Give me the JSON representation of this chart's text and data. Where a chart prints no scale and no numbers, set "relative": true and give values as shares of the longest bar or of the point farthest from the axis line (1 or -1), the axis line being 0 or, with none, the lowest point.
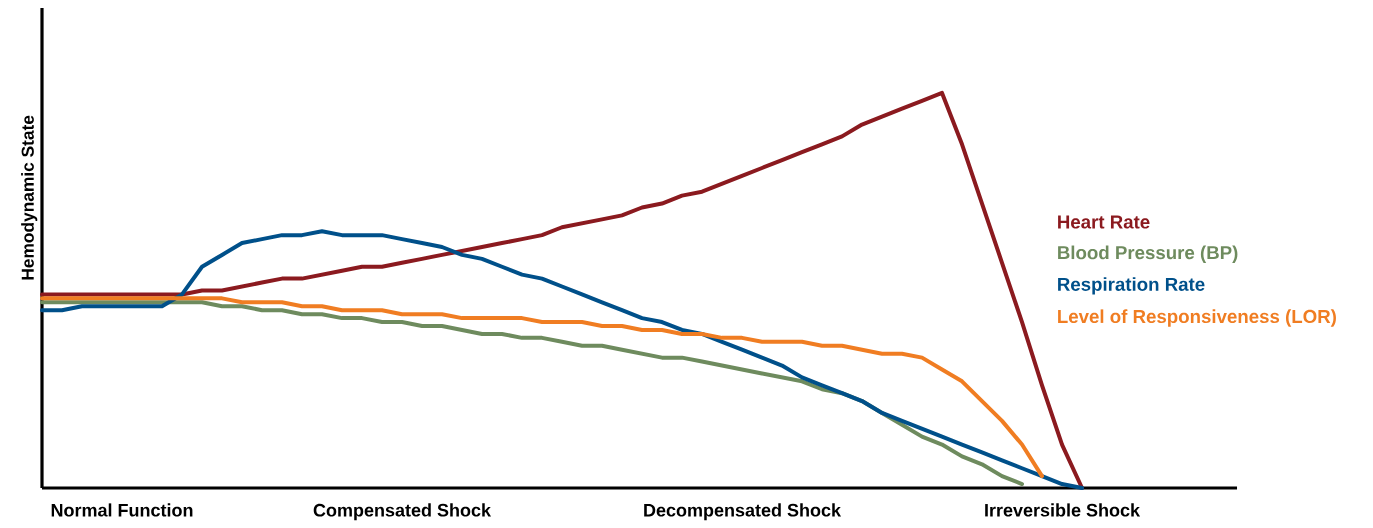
{
  "chart_data": {
    "type": "line",
    "relative": true,
    "ylabel": "Hemodynamic State",
    "legend": "right",
    "grid": false,
    "line_style": "solid",
    "categories": [
      null,
      null,
      null,
      null,
      "Normal Function",
      null,
      null,
      null,
      null,
      null,
      null,
      null,
      null,
      null,
      null,
      null,
      null,
      null,
      "Compensated Shock",
      null,
      null,
      null,
      null,
      null,
      null,
      null,
      null,
      null,
      null,
      null,
      null,
      null,
      null,
      null,
      null,
      "Decompensated Shock",
      null,
      null,
      null,
      null,
      null,
      null,
      null,
      null,
      null,
      null,
      null,
      null,
      null,
      null,
      null,
      "Irreversible Shock",
      null,
      null,
      null,
      null,
      null,
      null,
      null,
      null
    ],
    "series": [
      {
        "name": "Heart Rate",
        "color": "#8b1a1f",
        "values": [
          0.49,
          0.49,
          0.49,
          0.49,
          0.49,
          0.49,
          0.49,
          0.49,
          0.5,
          0.5,
          0.51,
          0.52,
          0.53,
          0.53,
          0.54,
          0.55,
          0.56,
          0.56,
          0.57,
          0.58,
          0.59,
          0.6,
          0.61,
          0.62,
          0.63,
          0.64,
          0.66,
          0.67,
          0.68,
          0.69,
          0.71,
          0.72,
          0.74,
          0.75,
          0.77,
          0.79,
          0.81,
          0.83,
          0.85,
          0.87,
          0.89,
          0.92,
          0.94,
          0.96,
          0.98,
          1.0,
          0.87,
          0.72,
          0.57,
          0.42,
          0.26,
          0.11,
          0,
          null,
          null,
          null,
          null,
          null,
          null,
          null
        ]
      },
      {
        "name": "Blood Pressure (BP)",
        "color": "#6e8b5e",
        "values": [
          0.47,
          0.47,
          0.47,
          0.47,
          0.47,
          0.47,
          0.47,
          0.47,
          0.47,
          0.46,
          0.46,
          0.45,
          0.45,
          0.44,
          0.44,
          0.43,
          0.43,
          0.42,
          0.42,
          0.41,
          0.41,
          0.4,
          0.39,
          0.39,
          0.38,
          0.38,
          0.37,
          0.36,
          0.36,
          0.35,
          0.34,
          0.33,
          0.33,
          0.32,
          0.31,
          0.3,
          0.29,
          0.28,
          0.27,
          0.25,
          0.24,
          0.22,
          0.19,
          0.16,
          0.13,
          0.11,
          0.08,
          0.06,
          0.03,
          0.01,
          null,
          null,
          null,
          null,
          null,
          null,
          null,
          null,
          null,
          null
        ]
      },
      {
        "name": "Respiration Rate",
        "color": "#00508a",
        "values": [
          0.45,
          0.45,
          0.46,
          0.46,
          0.46,
          0.46,
          0.46,
          0.49,
          0.56,
          0.59,
          0.62,
          0.63,
          0.64,
          0.64,
          0.65,
          0.64,
          0.64,
          0.64,
          0.63,
          0.62,
          0.61,
          0.59,
          0.58,
          0.56,
          0.54,
          0.53,
          0.51,
          0.49,
          0.47,
          0.45,
          0.43,
          0.42,
          0.4,
          0.39,
          0.37,
          0.35,
          0.33,
          0.31,
          0.28,
          0.26,
          0.24,
          0.22,
          0.19,
          0.17,
          0.15,
          0.13,
          0.11,
          0.09,
          0.07,
          0.05,
          0.03,
          0.01,
          0,
          null,
          null,
          null,
          null,
          null,
          null,
          null
        ]
      },
      {
        "name": "Level of Responsiveness (LOR)",
        "color": "#f07d22",
        "values": [
          0.48,
          0.48,
          0.48,
          0.48,
          0.48,
          0.48,
          0.48,
          0.48,
          0.48,
          0.48,
          0.47,
          0.47,
          0.47,
          0.46,
          0.46,
          0.45,
          0.45,
          0.45,
          0.44,
          0.44,
          0.44,
          0.43,
          0.43,
          0.43,
          0.43,
          0.42,
          0.42,
          0.42,
          0.41,
          0.41,
          0.4,
          0.4,
          0.39,
          0.39,
          0.38,
          0.38,
          0.37,
          0.37,
          0.37,
          0.36,
          0.36,
          0.35,
          0.34,
          0.34,
          0.33,
          0.3,
          0.27,
          0.22,
          0.17,
          0.11,
          0.03,
          null,
          null,
          null,
          null,
          null,
          null,
          null,
          null,
          null
        ]
      }
    ]
  }
}
